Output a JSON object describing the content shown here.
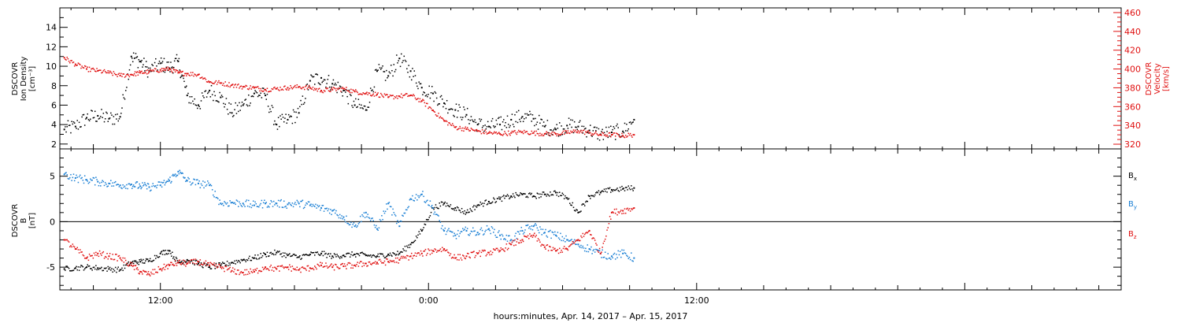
{
  "chart_data": [
    {
      "type": "scatter",
      "panel": "top",
      "ylabel_left": [
        "DSCOVR",
        "Ion Density",
        "[cm⁻³]"
      ],
      "ylabel_right": [
        "DSCOVR",
        "Velocity",
        "[km/s]"
      ],
      "ylim_left": [
        1.5,
        16
      ],
      "ylim_right": [
        315,
        465
      ],
      "yticks_left": [
        "2",
        "4",
        "6",
        "8",
        "10",
        "12",
        "14"
      ],
      "yticks_right": [
        "320",
        "340",
        "360",
        "380",
        "400",
        "420",
        "440",
        "460"
      ],
      "x_hours_range": [
        -16.5,
        31
      ],
      "series": [
        {
          "axis": "left",
          "color": "#000000",
          "t": [
            -16.3,
            -15.8,
            -15.3,
            -14.8,
            -14.3,
            -13.8,
            -13.3,
            -12.9,
            -12.5,
            -12.0,
            -11.6,
            -11.2,
            -10.8,
            -10.3,
            -9.8,
            -9.3,
            -8.8,
            -8.3,
            -7.8,
            -7.3,
            -6.8,
            -6.3,
            -5.8,
            -5.3,
            -4.8,
            -4.3,
            -3.8,
            -3.3,
            -2.8,
            -2.3,
            -1.8,
            -1.3,
            -0.8,
            -0.3,
            0.2,
            0.7,
            1.2,
            1.7,
            2.2,
            2.7,
            3.2,
            3.7,
            4.2,
            4.7,
            5.2,
            5.7,
            6.2,
            6.7,
            7.2,
            7.7,
            8.2,
            8.7,
            9.2
          ],
          "values": [
            3.5,
            3.8,
            4.7,
            4.9,
            4.6,
            4.8,
            11,
            10.5,
            9.5,
            10.3,
            9.8,
            10.5,
            7.0,
            6.0,
            7.5,
            6.8,
            5.2,
            6.0,
            7.2,
            7.0,
            4.0,
            4.5,
            5.2,
            8.5,
            8.8,
            8.2,
            7.5,
            6.0,
            5.5,
            9.5,
            9.0,
            10.8,
            9.5,
            7.8,
            7.2,
            6.2,
            5.5,
            5.0,
            4.0,
            3.8,
            4.0,
            4.5,
            4.8,
            4.6,
            3.8,
            3.5,
            3.9,
            3.8,
            3.4,
            3.0,
            3.2,
            3.3,
            4.5
          ]
        },
        {
          "axis": "right",
          "color": "#e01010",
          "t": [
            -16.3,
            -15.8,
            -15.3,
            -14.8,
            -14.3,
            -13.8,
            -13.3,
            -12.9,
            -12.5,
            -12.0,
            -11.6,
            -11.2,
            -10.8,
            -10.3,
            -9.8,
            -9.3,
            -8.8,
            -8.3,
            -7.8,
            -7.3,
            -6.8,
            -6.3,
            -5.8,
            -5.3,
            -4.8,
            -4.3,
            -3.8,
            -3.3,
            -2.8,
            -2.3,
            -1.8,
            -1.3,
            -0.8,
            -0.3,
            0.2,
            0.7,
            1.2,
            1.7,
            2.2,
            2.7,
            3.2,
            3.7,
            4.2,
            4.7,
            5.2,
            5.7,
            6.2,
            6.7,
            7.2,
            7.7,
            8.2,
            8.7,
            9.2
          ],
          "values": [
            412,
            405,
            400,
            398,
            396,
            393,
            394,
            396,
            397,
            399,
            400,
            396,
            395,
            394,
            386,
            385,
            383,
            381,
            380,
            378,
            379,
            380,
            381,
            380,
            377,
            378,
            379,
            376,
            374,
            373,
            370,
            371,
            372,
            366,
            356,
            345,
            338,
            336,
            334,
            332,
            331,
            332,
            333,
            332,
            331,
            331,
            332,
            334,
            332,
            330,
            330,
            329,
            330
          ]
        }
      ]
    },
    {
      "type": "scatter",
      "panel": "bottom",
      "ylabel_left": [
        "DSCOVR",
        "B",
        "[nT]"
      ],
      "ylim": [
        -7.5,
        8
      ],
      "yticks": [
        "-5",
        "0",
        "5"
      ],
      "x_hours_range": [
        -16.5,
        31
      ],
      "xticks": [
        "12:00",
        "0:00",
        "12:00"
      ],
      "xticks_hours": [
        -12,
        0,
        12
      ],
      "xlabel": "hours:minutes, Apr. 14, 2017 – Apr. 15, 2017",
      "legend": [
        "B",
        "B",
        "B"
      ],
      "legend_subscripts": [
        "x",
        "y",
        "z"
      ],
      "series": [
        {
          "name": "Bx",
          "color": "#000000",
          "t": [
            -16.3,
            -15.8,
            -15.3,
            -14.8,
            -14.3,
            -13.8,
            -13.3,
            -12.9,
            -12.5,
            -12.0,
            -11.6,
            -11.2,
            -10.8,
            -10.3,
            -9.8,
            -9.3,
            -8.8,
            -8.3,
            -7.8,
            -7.3,
            -6.8,
            -6.3,
            -5.8,
            -5.3,
            -4.8,
            -4.3,
            -3.8,
            -3.3,
            -2.8,
            -2.3,
            -1.8,
            -1.3,
            -0.8,
            -0.3,
            0.2,
            0.7,
            1.2,
            1.7,
            2.2,
            2.7,
            3.2,
            3.7,
            4.2,
            4.7,
            5.2,
            5.7,
            6.2,
            6.7,
            7.2,
            7.7,
            8.2,
            8.7,
            9.2
          ],
          "values": [
            -5.2,
            -5.1,
            -5.0,
            -5.1,
            -5.2,
            -5.3,
            -4.5,
            -4.4,
            -4.3,
            -3.5,
            -3.2,
            -4.5,
            -4.2,
            -4.6,
            -5.0,
            -4.8,
            -4.5,
            -4.2,
            -4.0,
            -3.6,
            -3.4,
            -3.7,
            -3.9,
            -3.6,
            -3.5,
            -3.8,
            -3.7,
            -3.6,
            -3.7,
            -3.8,
            -3.6,
            -3.5,
            -2.5,
            -1.0,
            1.5,
            2.0,
            1.5,
            1.0,
            1.8,
            2.2,
            2.5,
            2.8,
            3.0,
            2.8,
            3.0,
            3.2,
            2.6,
            1.0,
            2.8,
            3.2,
            3.5,
            3.6,
            3.7
          ]
        },
        {
          "name": "By",
          "color": "#1a7fd4",
          "t": [
            -16.3,
            -15.8,
            -15.3,
            -14.8,
            -14.3,
            -13.8,
            -13.3,
            -12.9,
            -12.5,
            -12.0,
            -11.6,
            -11.2,
            -10.8,
            -10.3,
            -9.8,
            -9.3,
            -8.8,
            -8.3,
            -7.8,
            -7.3,
            -6.8,
            -6.3,
            -5.8,
            -5.3,
            -4.8,
            -4.3,
            -3.8,
            -3.3,
            -2.8,
            -2.3,
            -1.8,
            -1.3,
            -0.8,
            -0.3,
            0.2,
            0.7,
            1.2,
            1.7,
            2.2,
            2.7,
            3.2,
            3.7,
            4.2,
            4.7,
            5.2,
            5.7,
            6.2,
            6.7,
            7.2,
            7.7,
            8.2,
            8.7,
            9.2
          ],
          "values": [
            5.2,
            4.8,
            4.6,
            4.4,
            4.2,
            4.0,
            4.1,
            3.9,
            3.8,
            4.0,
            4.5,
            5.5,
            4.5,
            4.2,
            4.0,
            2.0,
            2.1,
            2.0,
            1.8,
            2.0,
            2.0,
            1.9,
            2.0,
            1.8,
            1.5,
            1.2,
            0.5,
            -0.5,
            1.0,
            -0.8,
            2.0,
            -0.5,
            2.5,
            3.0,
            1.5,
            -1.0,
            -1.5,
            -1.0,
            -1.2,
            -0.8,
            -1.5,
            -2.0,
            -1.0,
            -0.5,
            -1.2,
            -1.5,
            -2.0,
            -2.5,
            -3.0,
            -3.5,
            -3.8,
            -3.5,
            -4.0
          ]
        },
        {
          "name": "Bz",
          "color": "#e01010",
          "t": [
            -16.3,
            -15.8,
            -15.3,
            -14.8,
            -14.3,
            -13.8,
            -13.3,
            -12.9,
            -12.5,
            -12.0,
            -11.6,
            -11.2,
            -10.8,
            -10.3,
            -9.8,
            -9.3,
            -8.8,
            -8.3,
            -7.8,
            -7.3,
            -6.8,
            -6.3,
            -5.8,
            -5.3,
            -4.8,
            -4.3,
            -3.8,
            -3.3,
            -2.8,
            -2.3,
            -1.8,
            -1.3,
            -0.8,
            -0.3,
            0.2,
            0.7,
            1.2,
            1.7,
            2.2,
            2.7,
            3.2,
            3.7,
            4.2,
            4.7,
            5.2,
            5.7,
            6.2,
            6.7,
            7.2,
            7.7,
            8.2,
            8.7,
            9.2
          ],
          "values": [
            -2.0,
            -3.0,
            -4.0,
            -3.5,
            -3.8,
            -4.0,
            -4.8,
            -5.5,
            -5.8,
            -5.2,
            -4.8,
            -4.5,
            -4.6,
            -4.4,
            -4.8,
            -5.0,
            -5.4,
            -5.6,
            -5.5,
            -5.0,
            -5.2,
            -5.0,
            -5.3,
            -5.1,
            -4.8,
            -5.0,
            -4.9,
            -4.8,
            -4.6,
            -4.5,
            -4.4,
            -4.2,
            -3.8,
            -3.5,
            -3.2,
            -3.0,
            -4.0,
            -3.8,
            -3.5,
            -3.4,
            -3.2,
            -2.5,
            -2.0,
            -1.5,
            -2.8,
            -3.2,
            -3.0,
            -2.0,
            -1.0,
            -3.5,
            1.0,
            1.2,
            1.5
          ]
        }
      ]
    }
  ]
}
